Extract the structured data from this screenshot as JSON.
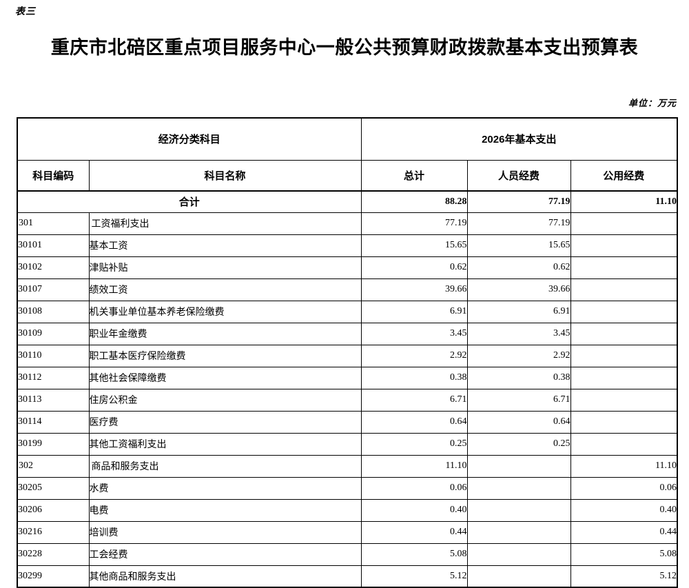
{
  "page": {
    "table_label": "表三",
    "title": "重庆市北碚区重点项目服务中心一般公共预算财政拨款基本支出预算表",
    "unit_note": "单位：万元"
  },
  "table": {
    "header": {
      "group_left": "经济分类科目",
      "group_right": "2026年基本支出",
      "col_code": "科目编码",
      "col_name": "科目名称",
      "col_total": "总计",
      "col_personnel": "人员经费",
      "col_public": "公用经费"
    },
    "total_row": {
      "label": "合计",
      "total": "88.28",
      "personnel": "77.19",
      "public": "11.10"
    },
    "rows": [
      {
        "code": "301",
        "name": "工资福利支出",
        "total": "77.19",
        "personnel": "77.19",
        "public": "",
        "level": "top"
      },
      {
        "code": "30101",
        "name": "基本工资",
        "total": "15.65",
        "personnel": "15.65",
        "public": "",
        "level": "sub"
      },
      {
        "code": "30102",
        "name": "津贴补贴",
        "total": "0.62",
        "personnel": "0.62",
        "public": "",
        "level": "sub"
      },
      {
        "code": "30107",
        "name": "绩效工资",
        "total": "39.66",
        "personnel": "39.66",
        "public": "",
        "level": "sub"
      },
      {
        "code": "30108",
        "name": "机关事业单位基本养老保险缴费",
        "total": "6.91",
        "personnel": "6.91",
        "public": "",
        "level": "sub"
      },
      {
        "code": "30109",
        "name": "职业年金缴费",
        "total": "3.45",
        "personnel": "3.45",
        "public": "",
        "level": "sub"
      },
      {
        "code": "30110",
        "name": "职工基本医疗保险缴费",
        "total": "2.92",
        "personnel": "2.92",
        "public": "",
        "level": "sub"
      },
      {
        "code": "30112",
        "name": "其他社会保障缴费",
        "total": "0.38",
        "personnel": "0.38",
        "public": "",
        "level": "sub"
      },
      {
        "code": "30113",
        "name": "住房公积金",
        "total": "6.71",
        "personnel": "6.71",
        "public": "",
        "level": "sub"
      },
      {
        "code": "30114",
        "name": "医疗费",
        "total": "0.64",
        "personnel": "0.64",
        "public": "",
        "level": "sub"
      },
      {
        "code": "30199",
        "name": "其他工资福利支出",
        "total": "0.25",
        "personnel": "0.25",
        "public": "",
        "level": "sub"
      },
      {
        "code": "302",
        "name": "商品和服务支出",
        "total": "11.10",
        "personnel": "",
        "public": "11.10",
        "level": "top"
      },
      {
        "code": "30205",
        "name": "水费",
        "total": "0.06",
        "personnel": "",
        "public": "0.06",
        "level": "sub"
      },
      {
        "code": "30206",
        "name": "电费",
        "total": "0.40",
        "personnel": "",
        "public": "0.40",
        "level": "sub"
      },
      {
        "code": "30216",
        "name": "培训费",
        "total": "0.44",
        "personnel": "",
        "public": "0.44",
        "level": "sub"
      },
      {
        "code": "30228",
        "name": "工会经费",
        "total": "5.08",
        "personnel": "",
        "public": "5.08",
        "level": "sub"
      },
      {
        "code": "30299",
        "name": "其他商品和服务支出",
        "total": "5.12",
        "personnel": "",
        "public": "5.12",
        "level": "sub"
      }
    ]
  }
}
